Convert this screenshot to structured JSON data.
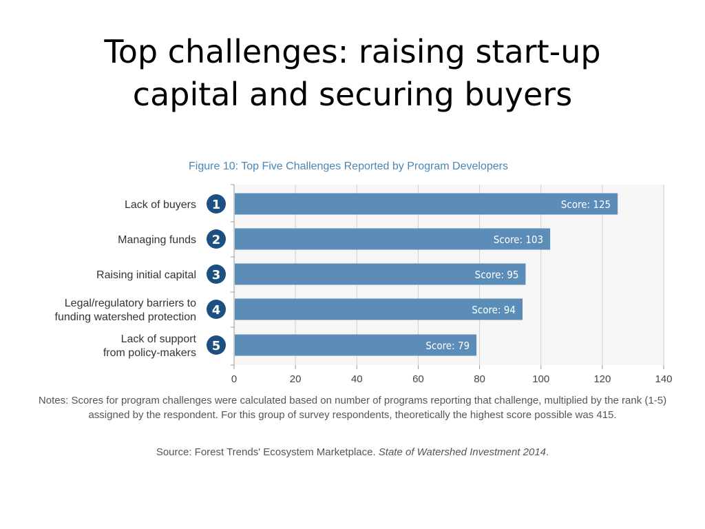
{
  "slide": {
    "title_line1": "Top challenges:  raising start-up",
    "title_line2": "capital and securing buyers"
  },
  "chart_data": {
    "type": "bar",
    "orientation": "horizontal",
    "title": "Figure 10: Top Five Challenges Reported by Program Developers",
    "categories": [
      [
        "Lack of buyers"
      ],
      [
        "Managing funds"
      ],
      [
        "Raising initial capital"
      ],
      [
        "Legal/regulatory barriers to",
        "funding watershed protection"
      ],
      [
        "Lack of support",
        "from policy-makers"
      ]
    ],
    "ranks": [
      "1",
      "2",
      "3",
      "4",
      "5"
    ],
    "values": [
      125,
      103,
      95,
      94,
      79
    ],
    "data_labels": [
      "Score: 125",
      "Score: 103",
      "Score: 95",
      "Score: 94",
      "Score: 79"
    ],
    "xlim": [
      0,
      140
    ],
    "xticks": [
      0,
      20,
      40,
      60,
      80,
      100,
      120,
      140
    ],
    "xlabel": "",
    "ylabel": "",
    "grid": "vertical",
    "colors": {
      "bar": "#5b8db8",
      "badge": "#1d4f80",
      "title": "#4a86b4",
      "grid": "#cfcfcf",
      "plot_bg": "#f6f6f6"
    }
  },
  "notes": "Notes: Scores for program challenges were calculated based on number of programs reporting that challenge, multiplied by the rank (1-5) assigned by the respondent. For this group of survey respondents, theoretically the highest score possible was 415.",
  "source": {
    "prefix": "Source: Forest Trends' Ecosystem Marketplace. ",
    "publication": "State of Watershed Investment 2014",
    "suffix": "."
  }
}
